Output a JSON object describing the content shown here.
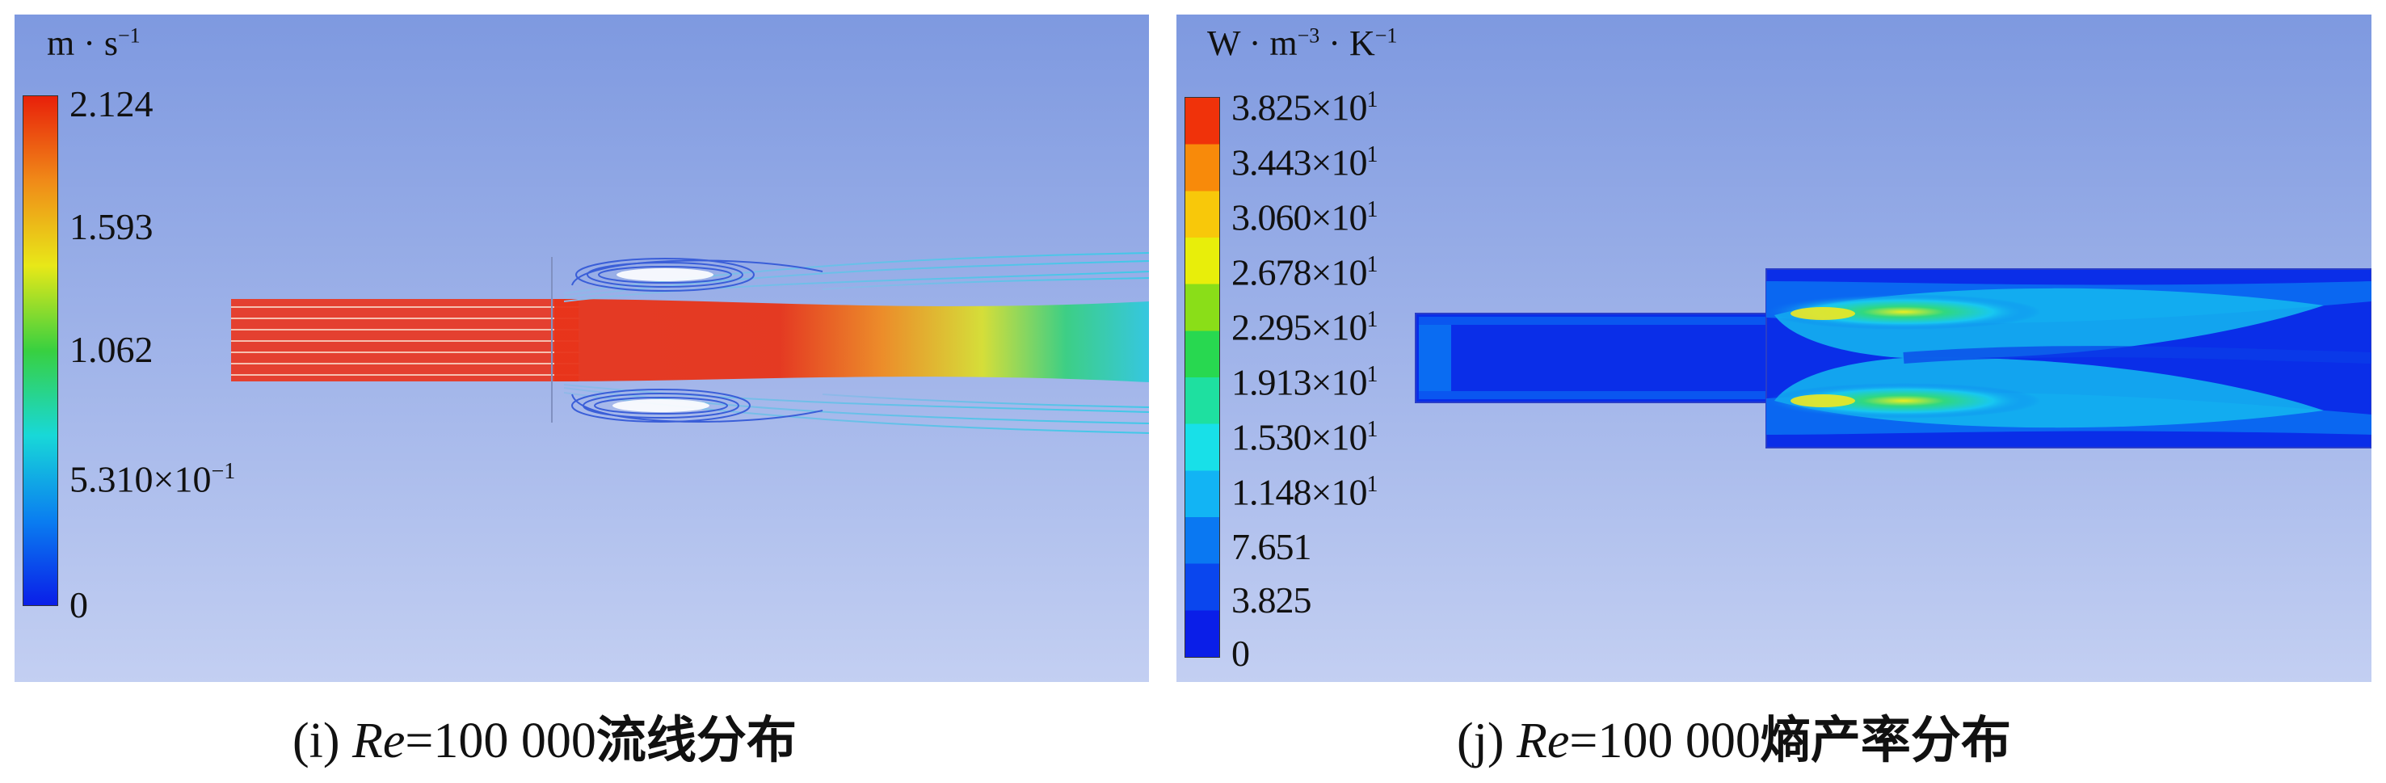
{
  "panels": [
    {
      "id": "i",
      "unit": {
        "base": "m · s",
        "exp": "−1"
      },
      "ticks": [
        "2.124",
        "1.593",
        "1.062",
        "5.310×10",
        "0"
      ],
      "tick_exps": [
        "",
        "",
        "",
        "−1",
        ""
      ],
      "caption": {
        "prefix": "(i) ",
        "italic": "Re",
        "mid": "=100 000",
        "bold": "流线分布"
      }
    },
    {
      "id": "j",
      "unit": {
        "base": "W · m",
        "exp": "−3",
        "base2": " · K",
        "exp2": "−1"
      },
      "ticks": [
        "3.825×10",
        "3.443×10",
        "3.060×10",
        "2.678×10",
        "2.295×10",
        "1.913×10",
        "1.530×10",
        "1.148×10",
        "7.651",
        "3.825",
        "0"
      ],
      "tick_exps": [
        "1",
        "1",
        "1",
        "1",
        "1",
        "1",
        "1",
        "1",
        "",
        "",
        ""
      ],
      "caption": {
        "prefix": "(j) ",
        "italic": "Re",
        "mid": "=100 000",
        "bold": "熵产率分布"
      }
    }
  ],
  "colormap": [
    "#0a1ee8",
    "#0a46ee",
    "#0a78f2",
    "#12b4f4",
    "#18e0e8",
    "#1ee0a0",
    "#28d850",
    "#8ade18",
    "#e8ee0a",
    "#f8c80a",
    "#f88a0a",
    "#f0320a"
  ]
}
